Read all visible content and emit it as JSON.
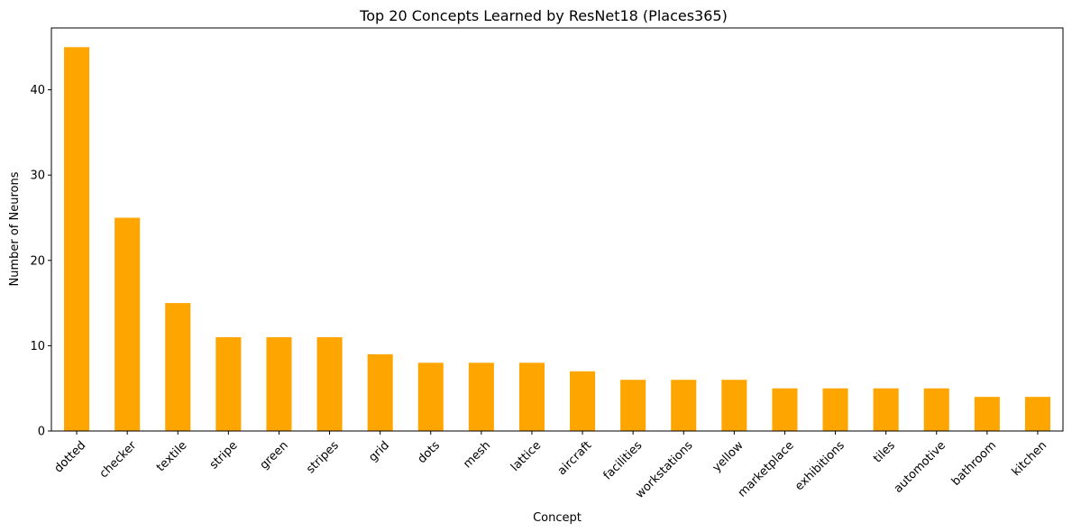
{
  "chart_data": {
    "type": "bar",
    "title": "Top 20 Concepts Learned by ResNet18 (Places365)",
    "xlabel": "Concept",
    "ylabel": "Number of Neurons",
    "categories": [
      "dotted",
      "checker",
      "textile",
      "stripe",
      "green",
      "stripes",
      "grid",
      "dots",
      "mesh",
      "lattice",
      "aircraft",
      "facilities",
      "workstations",
      "yellow",
      "marketplace",
      "exhibitions",
      "tiles",
      "automotive",
      "bathroom",
      "kitchen"
    ],
    "values": [
      45,
      25,
      15,
      11,
      11,
      11,
      9,
      8,
      8,
      8,
      7,
      6,
      6,
      6,
      5,
      5,
      5,
      5,
      4,
      4
    ],
    "ylim": [
      0,
      47.25
    ],
    "yticks": [
      0,
      10,
      20,
      30,
      40
    ],
    "bar_color": "#FFA500",
    "grid": false,
    "legend": "none"
  }
}
